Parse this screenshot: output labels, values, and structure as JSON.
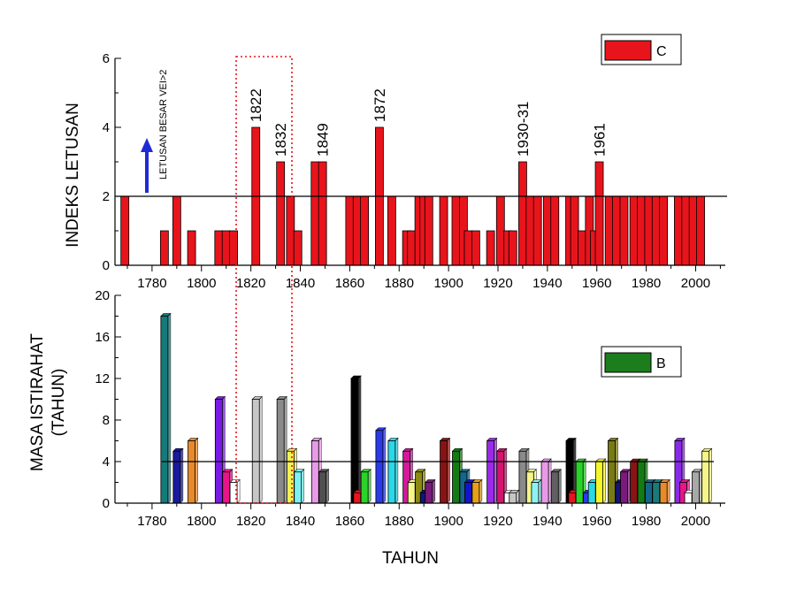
{
  "chart_data": [
    {
      "type": "bar",
      "legend": "C",
      "ylabel": "INDEKS LETUSAN",
      "ylim": [
        0,
        6
      ],
      "yticks": [
        0,
        2,
        4,
        6
      ],
      "xlim": [
        1765,
        2012
      ],
      "xticks": [
        1780,
        1800,
        1820,
        1840,
        1860,
        1880,
        1900,
        1920,
        1940,
        1960,
        1980,
        2000
      ],
      "reference_line": 2,
      "bar_color": "#e8141c",
      "x": [
        1769,
        1785,
        1790,
        1796,
        1807,
        1810,
        1813,
        1822,
        1832,
        1836,
        1839,
        1846,
        1849,
        1860,
        1863,
        1866,
        1872,
        1877,
        1883,
        1885,
        1888,
        1890,
        1892,
        1898,
        1903,
        1906,
        1908,
        1911,
        1917,
        1921,
        1924,
        1926,
        1930,
        1933,
        1936,
        1940,
        1943,
        1949,
        1951,
        1954,
        1957,
        1959,
        1961,
        1965,
        1968,
        1971,
        1975,
        1978,
        1981,
        1984,
        1987,
        1993,
        1996,
        1999,
        2002
      ],
      "values": [
        2,
        1,
        2,
        1,
        1,
        1,
        1,
        4,
        3,
        2,
        1,
        3,
        3,
        2,
        2,
        2,
        4,
        2,
        1,
        1,
        2,
        2,
        2,
        2,
        2,
        2,
        1,
        1,
        1,
        2,
        1,
        1,
        3,
        2,
        2,
        2,
        2,
        2,
        2,
        1,
        2,
        1,
        3,
        2,
        2,
        2,
        2,
        2,
        2,
        2,
        2,
        2,
        2,
        2,
        2
      ],
      "annotations": [
        {
          "text": "1822",
          "x": 1822
        },
        {
          "text": "1832",
          "x": 1832
        },
        {
          "text": "1849",
          "x": 1849
        },
        {
          "text": "1872",
          "x": 1872
        },
        {
          "text": "1930-31",
          "x": 1930
        },
        {
          "text": "1961",
          "x": 1961
        }
      ],
      "arrow_note": "LETUSAN BESAR VEI>2",
      "arrow_color": "#1f2bd6",
      "highlight_color": "#e8141c"
    },
    {
      "type": "bar",
      "legend": "B",
      "legend_color": "#1b7d1b",
      "xlabel": "TAHUN",
      "ylabel_lines": [
        "MASA ISTIRAHAT",
        "(TAHUN)"
      ],
      "ylim": [
        0,
        20
      ],
      "yticks": [
        0,
        4,
        8,
        12,
        16,
        20
      ],
      "xlim": [
        1765,
        2012
      ],
      "xticks": [
        1780,
        1800,
        1820,
        1840,
        1860,
        1880,
        1900,
        1920,
        1940,
        1960,
        1980,
        2000
      ],
      "reference_line": 4,
      "x": [
        1785,
        1790,
        1796,
        1807,
        1810,
        1813,
        1822,
        1832,
        1836,
        1839,
        1846,
        1849,
        1862,
        1863,
        1866,
        1872,
        1877,
        1883,
        1885,
        1888,
        1890,
        1892,
        1898,
        1903,
        1906,
        1908,
        1911,
        1917,
        1921,
        1924,
        1926,
        1930,
        1933,
        1935,
        1939,
        1943,
        1949,
        1950,
        1953,
        1956,
        1958,
        1961,
        1966,
        1969,
        1971,
        1975,
        1978,
        1981,
        1984,
        1987,
        1993,
        1995,
        1997,
        2000,
        2004
      ],
      "values": [
        18,
        5,
        6,
        10,
        3,
        2,
        10,
        10,
        5,
        3,
        6,
        3,
        12,
        1,
        3,
        7,
        6,
        5,
        2,
        3,
        1,
        2,
        6,
        5,
        3,
        2,
        2,
        6,
        5,
        1,
        1,
        5,
        3,
        2,
        4,
        3,
        6,
        1,
        4,
        1,
        2,
        4,
        6,
        2,
        3,
        4,
        4,
        2,
        2,
        2,
        6,
        2,
        1,
        3,
        5
      ],
      "colors": [
        "#147a7a",
        "#1a1a9c",
        "#e88a2a",
        "#7a1ae8",
        "#e8148a",
        "#ffffff",
        "#c6c6c6",
        "#8a8a8a",
        "#f2f252",
        "#7af2f2",
        "#e89ae8",
        "#505050",
        "#000000",
        "#e8141c",
        "#2ad22a",
        "#2a3ae8",
        "#2ad8e8",
        "#d21a9a",
        "#f5f58a",
        "#8a8a14",
        "#14147a",
        "#7a1a7a",
        "#8a1414",
        "#147a14",
        "#14668a",
        "#1414c8",
        "#e8a01a",
        "#9a2ae8",
        "#d2146e",
        "#ffffff",
        "#c6c6c6",
        "#8a8a8a",
        "#f5f58a",
        "#8ef2f2",
        "#e89ae8",
        "#606060",
        "#000000",
        "#e8141c",
        "#2ad22a",
        "#2a3ae8",
        "#2ad8e8",
        "#f5f52a",
        "#7a7a14",
        "#14147a",
        "#7a1a7a",
        "#8a1414",
        "#147a14",
        "#14668a",
        "#1a7a7a",
        "#e88a2a",
        "#8a2ae8",
        "#e8148a",
        "#ffffff",
        "#a8a8a8",
        "#f5f58a"
      ]
    }
  ]
}
